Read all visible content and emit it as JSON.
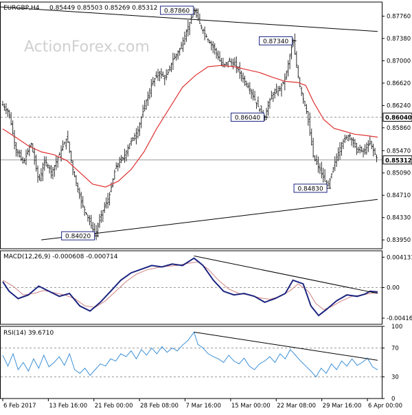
{
  "header": {
    "symbol": "EURGBP,H4",
    "ohlc": "0.85449 0.85503 0.85269 0.85312"
  },
  "watermark": "ActionForex.com",
  "colors": {
    "price": "#2d2d2d",
    "ma": "#e03030",
    "macd": "#1a237e",
    "signal": "#d08080",
    "rsi": "#3b8fd6",
    "trendline": "#000000",
    "grid": "#999999",
    "watermark": "#d0d0d0"
  },
  "chart_data": [
    {
      "type": "candlestick",
      "panel": "price",
      "title": "EURGBP,H4",
      "ylim": [
        0.838,
        0.88
      ],
      "y_ticks": [
        "0.87760",
        "0.87380",
        "0.87000",
        "0.86620",
        "0.86240",
        "0.85860",
        "0.85470",
        "0.85090",
        "0.84710",
        "0.84330",
        "0.83950"
      ],
      "x_ticks": [
        "6 Feb 2017",
        "13 Feb 16:00",
        "21 Feb 00:00",
        "28 Feb 08:00",
        "7 Mar 16:00",
        "15 Mar 00:00",
        "22 Mar 08:00",
        "29 Mar 16:00",
        "6 Apr 00:00"
      ],
      "close_path": [
        [
          0,
          0.8625
        ],
        [
          5,
          0.861
        ],
        [
          10,
          0.855
        ],
        [
          16,
          0.8525
        ],
        [
          22,
          0.856
        ],
        [
          28,
          0.8495
        ],
        [
          33,
          0.853
        ],
        [
          38,
          0.851
        ],
        [
          44,
          0.854
        ],
        [
          50,
          0.857
        ],
        [
          55,
          0.851
        ],
        [
          61,
          0.846
        ],
        [
          66,
          0.8435
        ],
        [
          72,
          0.8403
        ],
        [
          77,
          0.844
        ],
        [
          83,
          0.847
        ],
        [
          88,
          0.852
        ],
        [
          94,
          0.8535
        ],
        [
          99,
          0.856
        ],
        [
          105,
          0.858
        ],
        [
          110,
          0.862
        ],
        [
          116,
          0.866
        ],
        [
          121,
          0.868
        ],
        [
          127,
          0.867
        ],
        [
          132,
          0.87
        ],
        [
          138,
          0.872
        ],
        [
          143,
          0.875
        ],
        [
          149,
          0.8786
        ],
        [
          154,
          0.876
        ],
        [
          160,
          0.8735
        ],
        [
          165,
          0.872
        ],
        [
          171,
          0.869
        ],
        [
          176,
          0.87
        ],
        [
          182,
          0.869
        ],
        [
          187,
          0.867
        ],
        [
          193,
          0.865
        ],
        [
          198,
          0.8625
        ],
        [
          204,
          0.8604
        ],
        [
          209,
          0.864
        ],
        [
          215,
          0.865
        ],
        [
          220,
          0.867
        ],
        [
          226,
          0.8734
        ],
        [
          231,
          0.866
        ],
        [
          237,
          0.861
        ],
        [
          242,
          0.8535
        ],
        [
          248,
          0.851
        ],
        [
          253,
          0.8483
        ],
        [
          259,
          0.853
        ],
        [
          264,
          0.856
        ],
        [
          270,
          0.8575
        ],
        [
          275,
          0.855
        ],
        [
          281,
          0.8545
        ],
        [
          286,
          0.856
        ],
        [
          292,
          0.8531
        ]
      ],
      "ma_series": [
        [
          0,
          0.8584
        ],
        [
          10,
          0.857
        ],
        [
          20,
          0.8555
        ],
        [
          30,
          0.8545
        ],
        [
          40,
          0.854
        ],
        [
          50,
          0.853
        ],
        [
          60,
          0.851
        ],
        [
          70,
          0.849
        ],
        [
          80,
          0.8485
        ],
        [
          90,
          0.8495
        ],
        [
          100,
          0.8515
        ],
        [
          110,
          0.8545
        ],
        [
          120,
          0.8585
        ],
        [
          130,
          0.862
        ],
        [
          140,
          0.8655
        ],
        [
          150,
          0.8675
        ],
        [
          160,
          0.869
        ],
        [
          170,
          0.8692
        ],
        [
          180,
          0.869
        ],
        [
          190,
          0.8685
        ],
        [
          200,
          0.868
        ],
        [
          210,
          0.8672
        ],
        [
          220,
          0.8665
        ],
        [
          230,
          0.8663
        ],
        [
          236,
          0.8658
        ],
        [
          242,
          0.863
        ],
        [
          250,
          0.86
        ],
        [
          258,
          0.8585
        ],
        [
          266,
          0.858
        ],
        [
          274,
          0.8575
        ],
        [
          282,
          0.8573
        ],
        [
          292,
          0.857
        ]
      ],
      "horizontal_lines": [
        {
          "value": 0.8604,
          "label": "0.86040"
        },
        {
          "value": 0.85312,
          "label": "0.85312"
        }
      ],
      "trendlines": [
        {
          "from": [
            -30,
            0.8796
          ],
          "to": [
            292,
            0.875
          ]
        },
        {
          "from": [
            30,
            0.8395
          ],
          "to": [
            292,
            0.8464
          ]
        }
      ],
      "annotations": [
        {
          "x": 149,
          "y": 0.8786,
          "label": "0.87860",
          "placement": "left"
        },
        {
          "x": 226,
          "y": 0.8734,
          "label": "0.87340",
          "placement": "left"
        },
        {
          "x": 204,
          "y": 0.8604,
          "label": "0.86040",
          "placement": "left"
        },
        {
          "x": 253,
          "y": 0.8483,
          "label": "0.84830",
          "placement": "left"
        },
        {
          "x": 72,
          "y": 0.8402,
          "label": "0.84020",
          "placement": "left"
        }
      ]
    },
    {
      "type": "line",
      "panel": "macd",
      "title": "MACD(12,26,9) -0.000608 -0.000714",
      "ylim": [
        -0.005,
        0.005
      ],
      "y_ticks": [
        "0.004131",
        "0.00",
        "-0.004162"
      ],
      "series": [
        {
          "role": "macd",
          "points": [
            [
              0,
              0.0008
            ],
            [
              5,
              -0.0005
            ],
            [
              12,
              -0.0015
            ],
            [
              20,
              -0.001
            ],
            [
              28,
              0.0002
            ],
            [
              36,
              -0.0005
            ],
            [
              44,
              -0.0012
            ],
            [
              52,
              -0.0008
            ],
            [
              60,
              -0.0025
            ],
            [
              68,
              -0.0032
            ],
            [
              76,
              -0.002
            ],
            [
              84,
              -0.0005
            ],
            [
              92,
              0.001
            ],
            [
              100,
              0.002
            ],
            [
              108,
              0.0025
            ],
            [
              116,
              0.003
            ],
            [
              124,
              0.0028
            ],
            [
              132,
              0.0032
            ],
            [
              140,
              0.003
            ],
            [
              149,
              0.004
            ],
            [
              156,
              0.003
            ],
            [
              164,
              0.001
            ],
            [
              172,
              -0.0005
            ],
            [
              180,
              -0.001
            ],
            [
              188,
              -0.0008
            ],
            [
              196,
              -0.0012
            ],
            [
              204,
              -0.002
            ],
            [
              212,
              -0.0015
            ],
            [
              220,
              -0.0008
            ],
            [
              226,
              0.001
            ],
            [
              234,
              0.0005
            ],
            [
              240,
              -0.0025
            ],
            [
              246,
              -0.0038
            ],
            [
              252,
              -0.003
            ],
            [
              260,
              -0.0018
            ],
            [
              268,
              -0.001
            ],
            [
              276,
              -0.0012
            ],
            [
              282,
              -0.0009
            ],
            [
              286,
              -0.0005
            ],
            [
              292,
              -0.0006
            ]
          ]
        },
        {
          "role": "signal",
          "points": [
            [
              0,
              0.001
            ],
            [
              8,
              0.0002
            ],
            [
              16,
              -0.001
            ],
            [
              24,
              -0.0008
            ],
            [
              32,
              -0.0004
            ],
            [
              40,
              -0.0007
            ],
            [
              48,
              -0.001
            ],
            [
              56,
              -0.0015
            ],
            [
              64,
              -0.0025
            ],
            [
              72,
              -0.0027
            ],
            [
              80,
              -0.0018
            ],
            [
              88,
              -0.0005
            ],
            [
              96,
              0.0008
            ],
            [
              104,
              0.0018
            ],
            [
              112,
              0.0024
            ],
            [
              120,
              0.0027
            ],
            [
              128,
              0.0029
            ],
            [
              136,
              0.003
            ],
            [
              144,
              0.0033
            ],
            [
              152,
              0.0035
            ],
            [
              160,
              0.0025
            ],
            [
              168,
              0.001
            ],
            [
              176,
              -0.0002
            ],
            [
              184,
              -0.0008
            ],
            [
              192,
              -0.001
            ],
            [
              200,
              -0.0014
            ],
            [
              208,
              -0.0016
            ],
            [
              216,
              -0.0012
            ],
            [
              224,
              -0.0004
            ],
            [
              230,
              0.0005
            ],
            [
              238,
              -0.0005
            ],
            [
              244,
              -0.0022
            ],
            [
              250,
              -0.003
            ],
            [
              256,
              -0.0026
            ],
            [
              264,
              -0.0018
            ],
            [
              272,
              -0.0012
            ],
            [
              280,
              -0.001
            ],
            [
              286,
              -0.0008
            ],
            [
              292,
              -0.0007
            ]
          ]
        }
      ],
      "trendlines": [
        {
          "from": [
            149,
            0.0043
          ],
          "to": [
            292,
            -0.0008
          ]
        }
      ]
    },
    {
      "type": "line",
      "panel": "rsi",
      "title": "RSI(14) 39.6710",
      "ylim": [
        0,
        100
      ],
      "y_ticks": [
        "100",
        "70",
        "30",
        "0"
      ],
      "reference_lines": [
        70,
        30
      ],
      "series": [
        {
          "role": "rsi",
          "points": [
            [
              0,
              60
            ],
            [
              4,
              45
            ],
            [
              8,
              62
            ],
            [
              12,
              40
            ],
            [
              16,
              50
            ],
            [
              20,
              38
            ],
            [
              24,
              55
            ],
            [
              28,
              42
            ],
            [
              32,
              60
            ],
            [
              36,
              44
            ],
            [
              40,
              50
            ],
            [
              44,
              58
            ],
            [
              48,
              46
            ],
            [
              52,
              62
            ],
            [
              56,
              40
            ],
            [
              60,
              35
            ],
            [
              64,
              42
            ],
            [
              68,
              32
            ],
            [
              72,
              40
            ],
            [
              76,
              48
            ],
            [
              80,
              45
            ],
            [
              84,
              55
            ],
            [
              88,
              52
            ],
            [
              92,
              62
            ],
            [
              96,
              58
            ],
            [
              100,
              66
            ],
            [
              104,
              55
            ],
            [
              108,
              68
            ],
            [
              112,
              60
            ],
            [
              116,
              70
            ],
            [
              120,
              62
            ],
            [
              124,
              72
            ],
            [
              128,
              64
            ],
            [
              132,
              70
            ],
            [
              136,
              66
            ],
            [
              140,
              74
            ],
            [
              144,
              80
            ],
            [
              149,
              92
            ],
            [
              152,
              75
            ],
            [
              156,
              70
            ],
            [
              160,
              62
            ],
            [
              164,
              58
            ],
            [
              168,
              55
            ],
            [
              172,
              50
            ],
            [
              176,
              60
            ],
            [
              180,
              52
            ],
            [
              184,
              48
            ],
            [
              188,
              56
            ],
            [
              192,
              45
            ],
            [
              196,
              40
            ],
            [
              200,
              48
            ],
            [
              204,
              52
            ],
            [
              208,
              58
            ],
            [
              212,
              50
            ],
            [
              216,
              62
            ],
            [
              220,
              55
            ],
            [
              224,
              68
            ],
            [
              228,
              60
            ],
            [
              232,
              52
            ],
            [
              236,
              45
            ],
            [
              240,
              38
            ],
            [
              244,
              30
            ],
            [
              248,
              42
            ],
            [
              252,
              35
            ],
            [
              256,
              48
            ],
            [
              260,
              40
            ],
            [
              264,
              52
            ],
            [
              268,
              45
            ],
            [
              272,
              55
            ],
            [
              276,
              46
            ],
            [
              280,
              50
            ],
            [
              284,
              56
            ],
            [
              288,
              44
            ],
            [
              292,
              39.671
            ]
          ]
        }
      ],
      "trendlines": [
        {
          "from": [
            149,
            92
          ],
          "to": [
            292,
            53
          ]
        }
      ]
    }
  ]
}
